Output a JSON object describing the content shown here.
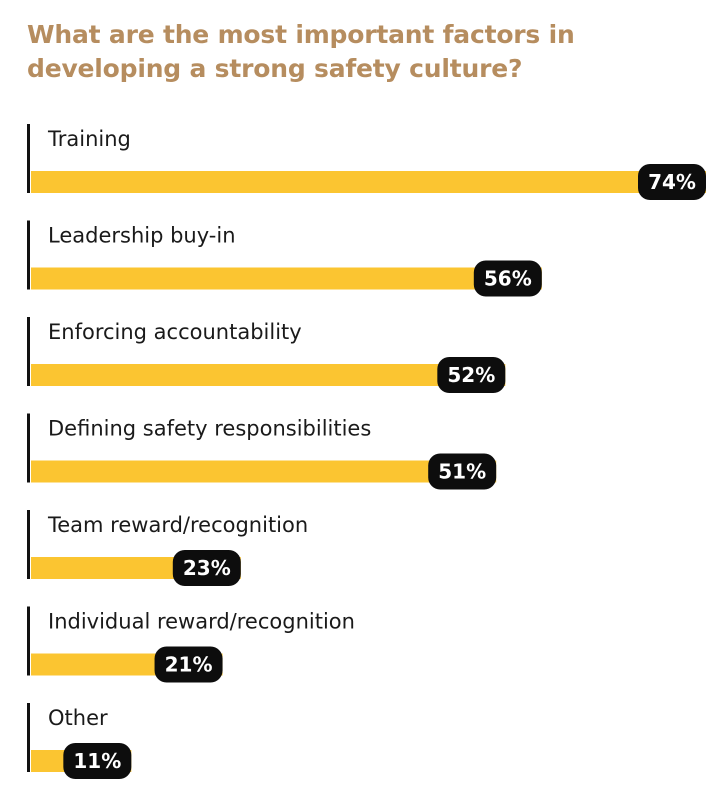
{
  "colors": {
    "title": "#b68d5f",
    "bar": "#fbc531",
    "axis": "#111111",
    "badge": "#0d0d0d",
    "badge_text": "#ffffff",
    "label": "#1a1a1a"
  },
  "chart_data": {
    "type": "bar",
    "orientation": "horizontal",
    "title": "What are the most important factors in developing a strong safety culture?",
    "categories": [
      "Training",
      "Leadership buy-in",
      "Enforcing accountability",
      "Defining safety responsibilities",
      "Team reward/recognition",
      "Individual reward/recognition",
      "Other"
    ],
    "values": [
      74,
      56,
      52,
      51,
      23,
      21,
      11
    ],
    "value_labels": [
      "74%",
      "56%",
      "52%",
      "51%",
      "23%",
      "21%",
      "11%"
    ],
    "unit": "%",
    "xlim": [
      0,
      100
    ],
    "grid": false,
    "legend": "none"
  }
}
